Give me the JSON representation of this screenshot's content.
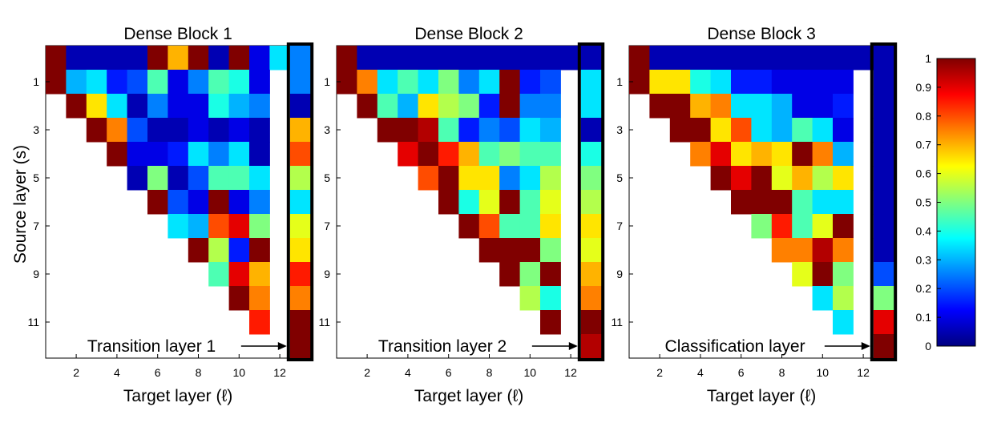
{
  "chart_data": {
    "type": "heatmap",
    "xlabel": "Target layer (ℓ)",
    "ylabel": "Source layer (s)",
    "x_ticks": [
      "2",
      "4",
      "6",
      "8",
      "10",
      "12"
    ],
    "y_ticks": [
      "1",
      "3",
      "5",
      "7",
      "9",
      "11"
    ],
    "colormap": "jet",
    "colorbar": {
      "range": [
        0,
        1
      ],
      "ticks": [
        "0",
        "0.1",
        "0.2",
        "0.3",
        "0.4",
        "0.5",
        "0.6",
        "0.7",
        "0.8",
        "0.9",
        "1"
      ]
    },
    "panels": [
      {
        "title": "Dense Block 1",
        "annotation": "Transition layer 1",
        "matrix": [
          [
            1.0,
            0.05,
            0.05,
            0.05,
            0.05,
            1.0,
            0.7,
            1.0,
            0.05,
            1.0,
            0.1,
            0.35
          ],
          [
            1.0,
            0.3,
            0.35,
            0.15,
            0.2,
            0.45,
            0.1,
            0.25,
            0.45,
            0.4,
            0.1,
            null
          ],
          [
            null,
            1.0,
            0.65,
            0.35,
            0.05,
            0.25,
            0.1,
            0.1,
            0.4,
            0.3,
            0.25,
            null
          ],
          [
            null,
            null,
            1.0,
            0.75,
            0.2,
            0.05,
            0.05,
            0.1,
            0.05,
            0.1,
            0.05,
            null
          ],
          [
            null,
            null,
            null,
            1.0,
            0.1,
            0.1,
            0.15,
            0.35,
            0.25,
            0.35,
            0.05,
            null
          ],
          [
            null,
            null,
            null,
            null,
            0.05,
            0.5,
            0.05,
            0.2,
            0.45,
            0.45,
            0.35,
            null
          ],
          [
            null,
            null,
            null,
            null,
            null,
            1.0,
            0.2,
            0.1,
            1.0,
            0.1,
            0.25,
            null
          ],
          [
            null,
            null,
            null,
            null,
            null,
            null,
            0.35,
            0.3,
            0.8,
            0.9,
            0.5,
            null
          ],
          [
            null,
            null,
            null,
            null,
            null,
            null,
            null,
            1.0,
            0.55,
            0.15,
            1.0,
            null
          ],
          [
            null,
            null,
            null,
            null,
            null,
            null,
            null,
            null,
            0.45,
            0.9,
            0.7,
            null
          ],
          [
            null,
            null,
            null,
            null,
            null,
            null,
            null,
            null,
            null,
            1.0,
            0.75,
            null
          ],
          [
            null,
            null,
            null,
            null,
            null,
            null,
            null,
            null,
            null,
            null,
            0.85,
            null
          ],
          [
            null,
            null,
            null,
            null,
            null,
            null,
            null,
            null,
            null,
            null,
            null,
            null
          ]
        ],
        "transition": [
          0.25,
          0.25,
          0.05,
          0.7,
          0.8,
          0.55,
          0.35,
          0.6,
          0.65,
          0.85,
          0.75,
          1.0,
          1.0
        ]
      },
      {
        "title": "Dense Block 2",
        "annotation": "Transition layer 2",
        "matrix": [
          [
            1.0,
            0.05,
            0.05,
            0.05,
            0.05,
            0.05,
            0.05,
            0.05,
            0.05,
            0.05,
            0.05,
            0.05
          ],
          [
            1.0,
            0.75,
            0.35,
            0.45,
            0.35,
            0.5,
            0.25,
            0.35,
            1.0,
            0.15,
            0.2,
            null
          ],
          [
            null,
            1.0,
            0.45,
            0.3,
            0.65,
            0.55,
            0.5,
            0.15,
            1.0,
            0.25,
            0.25,
            null
          ],
          [
            null,
            null,
            1.0,
            1.0,
            0.95,
            0.45,
            0.15,
            0.25,
            0.2,
            0.35,
            0.3,
            null
          ],
          [
            null,
            null,
            null,
            0.9,
            1.0,
            0.85,
            0.7,
            0.45,
            0.5,
            0.45,
            0.45,
            null
          ],
          [
            null,
            null,
            null,
            null,
            0.8,
            1.0,
            0.65,
            0.65,
            0.25,
            0.35,
            0.55,
            null
          ],
          [
            null,
            null,
            null,
            null,
            null,
            1.0,
            0.4,
            0.6,
            1.0,
            0.45,
            0.6,
            null
          ],
          [
            null,
            null,
            null,
            null,
            null,
            null,
            1.0,
            0.8,
            0.45,
            0.45,
            0.65,
            null
          ],
          [
            null,
            null,
            null,
            null,
            null,
            null,
            null,
            1.0,
            1.0,
            1.0,
            0.5,
            null
          ],
          [
            null,
            null,
            null,
            null,
            null,
            null,
            null,
            null,
            1.0,
            0.5,
            1.0,
            null
          ],
          [
            null,
            null,
            null,
            null,
            null,
            null,
            null,
            null,
            null,
            0.55,
            0.4,
            null
          ],
          [
            null,
            null,
            null,
            null,
            null,
            null,
            null,
            null,
            null,
            null,
            1.0,
            null
          ],
          [
            null,
            null,
            null,
            null,
            null,
            null,
            null,
            null,
            null,
            null,
            null,
            null
          ]
        ],
        "transition": [
          0.05,
          0.35,
          0.35,
          0.05,
          0.4,
          0.5,
          0.55,
          0.65,
          0.6,
          0.7,
          0.75,
          1.0,
          0.95
        ]
      },
      {
        "title": "Dense Block 3",
        "annotation": "Classification layer",
        "matrix": [
          [
            1.0,
            0.05,
            0.05,
            0.05,
            0.05,
            0.05,
            0.05,
            0.05,
            0.05,
            0.05,
            0.05,
            0.05
          ],
          [
            1.0,
            0.65,
            0.65,
            0.4,
            0.35,
            0.15,
            0.15,
            0.1,
            0.1,
            0.1,
            0.1,
            null
          ],
          [
            null,
            1.0,
            1.0,
            0.7,
            0.75,
            0.35,
            0.35,
            0.3,
            0.1,
            0.1,
            0.15,
            null
          ],
          [
            null,
            null,
            1.0,
            1.0,
            0.65,
            0.8,
            0.35,
            0.3,
            0.45,
            0.35,
            0.1,
            null
          ],
          [
            null,
            null,
            null,
            0.75,
            0.9,
            0.65,
            0.7,
            0.65,
            1.0,
            0.75,
            0.3,
            null
          ],
          [
            null,
            null,
            null,
            null,
            1.0,
            0.9,
            1.0,
            0.6,
            0.7,
            0.55,
            0.65,
            null
          ],
          [
            null,
            null,
            null,
            null,
            null,
            1.0,
            1.0,
            1.0,
            0.45,
            0.35,
            0.35,
            null
          ],
          [
            null,
            null,
            null,
            null,
            null,
            null,
            0.5,
            0.85,
            0.45,
            0.6,
            1.0,
            null
          ],
          [
            null,
            null,
            null,
            null,
            null,
            null,
            null,
            0.75,
            0.75,
            0.95,
            0.75,
            null
          ],
          [
            null,
            null,
            null,
            null,
            null,
            null,
            null,
            null,
            0.6,
            1.0,
            0.5,
            null
          ],
          [
            null,
            null,
            null,
            null,
            null,
            null,
            null,
            null,
            null,
            0.35,
            0.55,
            null
          ],
          [
            null,
            null,
            null,
            null,
            null,
            null,
            null,
            null,
            null,
            null,
            0.35,
            null
          ],
          [
            null,
            null,
            null,
            null,
            null,
            null,
            null,
            null,
            null,
            null,
            null,
            null
          ]
        ],
        "transition": [
          0.05,
          0.05,
          0.05,
          0.05,
          0.05,
          0.05,
          0.05,
          0.05,
          0.05,
          0.2,
          0.5,
          0.9,
          1.0
        ]
      }
    ]
  }
}
